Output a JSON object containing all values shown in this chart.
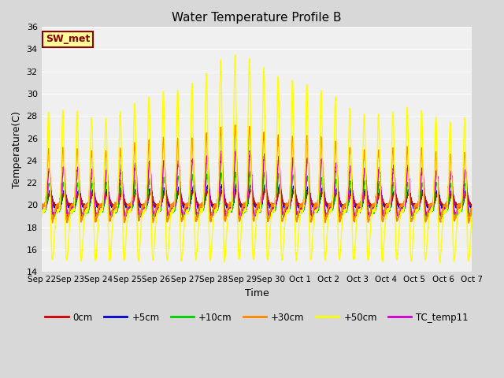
{
  "title": "Water Temperature Profile B",
  "xlabel": "Time",
  "ylabel": "Temperature(C)",
  "ylim": [
    14,
    36
  ],
  "yticks": [
    14,
    16,
    18,
    20,
    22,
    24,
    26,
    28,
    30,
    32,
    34,
    36
  ],
  "plot_bg_color": "#f0f0f0",
  "fig_bg_color": "#d8d8d8",
  "annotation_text": "SW_met",
  "annotation_bg": "#ffff99",
  "annotation_border": "#8B0000",
  "annotation_text_color": "#8B0000",
  "series_colors": {
    "0cm": "#cc0000",
    "+5cm": "#0000cc",
    "+10cm": "#00cc00",
    "+30cm": "#ff8800",
    "+50cm": "#ffff00",
    "TC_temp11": "#cc00cc"
  },
  "xtick_labels": [
    "Sep 22",
    "Sep 23",
    "Sep 24",
    "Sep 25",
    "Sep 26",
    "Sep 27",
    "Sep 28",
    "Sep 29",
    "Sep 30",
    "Oct 1",
    "Oct 2",
    "Oct 3",
    "Oct 4",
    "Oct 5",
    "Oct 6",
    "Oct 7"
  ],
  "num_days": 15
}
